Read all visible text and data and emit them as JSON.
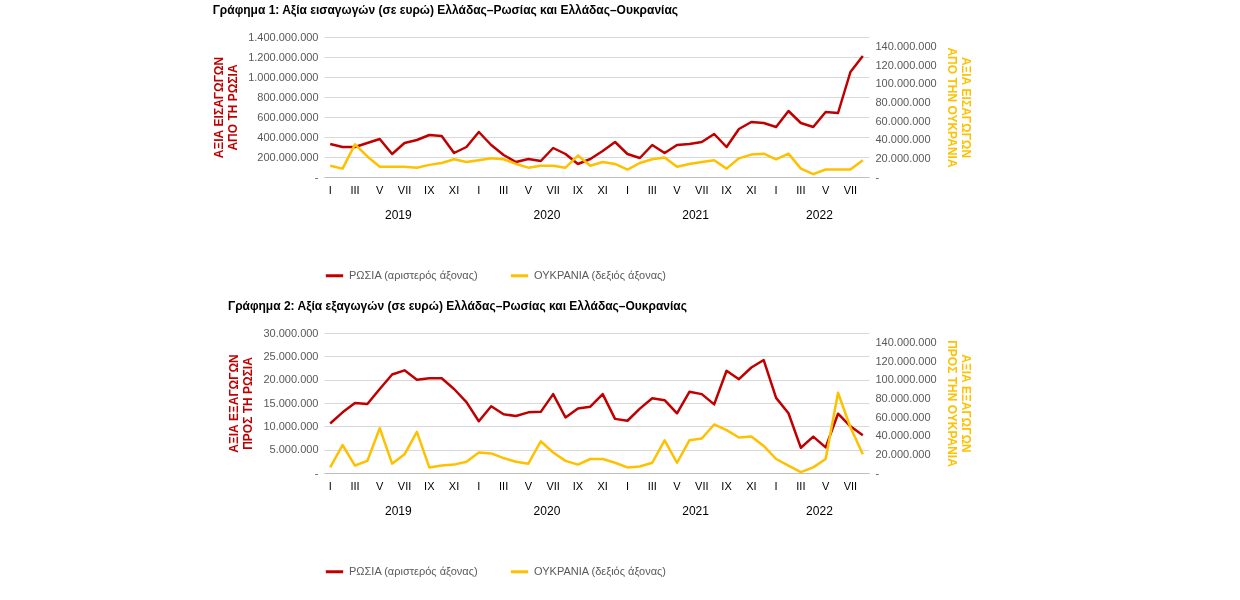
{
  "chart_data": [
    {
      "type": "line",
      "title": "Γράφημα 1: Αξία εισαγωγών (σε ευρώ) Ελλάδας–Ρωσίας και Ελλάδας–Ουκρανίας",
      "ylabel": "ΑΞΙΑ ΕΙΣΑΓΩΓΩΝ ΑΠΟ ΤΗ ΡΩΣΙΑ",
      "y2label": "ΑΞΙΑ ΕΙΣΑΓΩΓΩΝ ΑΠΟ ΤΗΝ ΟΥΚΡΑΝΙΑ",
      "categories": [
        "I",
        null,
        "III",
        null,
        "V",
        null,
        "VII",
        null,
        "IX",
        null,
        "XI",
        null,
        "I",
        null,
        "III",
        null,
        "V",
        null,
        "VII",
        null,
        "IX",
        null,
        "XI",
        null,
        "I",
        null,
        "III",
        null,
        "V",
        null,
        "VII",
        null,
        "IX",
        null,
        "XI",
        null,
        "I",
        null,
        "III",
        null,
        "V",
        null,
        "VII",
        null
      ],
      "annotations": [
        "2019",
        "2020",
        "2021",
        "2022"
      ],
      "ylim": [
        0,
        1400000000
      ],
      "yticks": [
        {
          "value": 0,
          "label": "-"
        },
        {
          "value": 200000000,
          "label": "200.000.000"
        },
        {
          "value": 400000000,
          "label": "400.000.000"
        },
        {
          "value": 600000000,
          "label": "600.000.000"
        },
        {
          "value": 800000000,
          "label": "800.000.000"
        },
        {
          "value": 1000000000,
          "label": "1.000.000.000"
        },
        {
          "value": 1200000000,
          "label": "1.200.000.000"
        },
        {
          "value": 1400000000,
          "label": "1.400.000.000"
        }
      ],
      "y2lim": [
        0,
        150000000
      ],
      "y2ticks": [
        {
          "value": 0,
          "label": "-"
        },
        {
          "value": 20000000,
          "label": "20.000.000"
        },
        {
          "value": 40000000,
          "label": "40.000.000"
        },
        {
          "value": 60000000,
          "label": "60.000.000"
        },
        {
          "value": 80000000,
          "label": "80.000.000"
        },
        {
          "value": 100000000,
          "label": "100.000.000"
        },
        {
          "value": 120000000,
          "label": "120.000.000"
        },
        {
          "value": 140000000,
          "label": "140.000.000"
        }
      ],
      "grid": "y",
      "legend": "bottom",
      "series": [
        {
          "name": "ΡΩΣΙΑ (αριστερός άξονας)",
          "color": "#c00000",
          "values": [
            330000000,
            300000000,
            300000000,
            340000000,
            380000000,
            230000000,
            340000000,
            370000000,
            420000000,
            410000000,
            240000000,
            300000000,
            450000000,
            320000000,
            220000000,
            150000000,
            180000000,
            160000000,
            290000000,
            230000000,
            130000000,
            180000000,
            260000000,
            350000000,
            230000000,
            190000000,
            320000000,
            240000000,
            320000000,
            330000000,
            350000000,
            430000000,
            300000000,
            480000000,
            550000000,
            540000000,
            500000000,
            660000000,
            540000000,
            500000000,
            650000000,
            640000000,
            1050000000,
            1210000000
          ]
        },
        {
          "name": "ΟΥΚΡΑΝΙΑ (δεξιός άξονας)",
          "color": "#ffc000",
          "axis": "y2",
          "values": [
            12000000,
            9000000,
            35000000,
            22000000,
            11000000,
            11000000,
            11000000,
            10000000,
            13000000,
            15000000,
            19000000,
            16000000,
            18000000,
            20000000,
            19000000,
            14000000,
            10000000,
            12000000,
            12000000,
            10000000,
            23000000,
            12000000,
            16000000,
            14000000,
            8000000,
            15000000,
            19000000,
            21000000,
            11000000,
            14000000,
            16000000,
            18000000,
            9000000,
            20000000,
            24000000,
            25000000,
            19000000,
            25000000,
            9000000,
            3000000,
            8000000,
            8000000,
            8000000,
            18000000
          ]
        }
      ]
    },
    {
      "type": "line",
      "title": "Γράφημα 2: Αξία εξαγωγών (σε ευρώ) Ελλάδας–Ρωσίας και Ελλάδας–Ουκρανίας",
      "ylabel": "ΑΞΙΑ ΕΞΑΓΩΓΩΝ ΠΡΟΣ ΤΗ ΡΩΣΙΑ",
      "y2label": "ΑΞΙΑ ΕΞΑΓΩΓΩΝ ΠΡΟΣ ΤΗΝ ΟΥΚΡΑΝΙΑ",
      "categories": [
        "I",
        null,
        "III",
        null,
        "V",
        null,
        "VII",
        null,
        "IX",
        null,
        "XI",
        null,
        "I",
        null,
        "III",
        null,
        "V",
        null,
        "VII",
        null,
        "IX",
        null,
        "XI",
        null,
        "I",
        null,
        "III",
        null,
        "V",
        null,
        "VII",
        null,
        "IX",
        null,
        "XI",
        null,
        "I",
        null,
        "III",
        null,
        "V",
        null,
        "VII",
        null
      ],
      "annotations": [
        "2019",
        "2020",
        "2021",
        "2022"
      ],
      "ylim": [
        0,
        30000000
      ],
      "yticks": [
        {
          "value": 0,
          "label": "-"
        },
        {
          "value": 5000000,
          "label": "5.000.000"
        },
        {
          "value": 10000000,
          "label": "10.000.000"
        },
        {
          "value": 15000000,
          "label": "15.000.000"
        },
        {
          "value": 20000000,
          "label": "20.000.000"
        },
        {
          "value": 25000000,
          "label": "25.000.000"
        },
        {
          "value": 30000000,
          "label": "30.000.000"
        }
      ],
      "y2lim": [
        0,
        150000000
      ],
      "y2ticks": [
        {
          "value": 0,
          "label": "-"
        },
        {
          "value": 20000000,
          "label": "20.000.000"
        },
        {
          "value": 40000000,
          "label": "40.000.000"
        },
        {
          "value": 60000000,
          "label": "60.000.000"
        },
        {
          "value": 80000000,
          "label": "80.000.000"
        },
        {
          "value": 100000000,
          "label": "100.000.000"
        },
        {
          "value": 120000000,
          "label": "120.000.000"
        },
        {
          "value": 140000000,
          "label": "140.000.000"
        }
      ],
      "grid": "y",
      "legend": "bottom",
      "series": [
        {
          "name": "ΡΩΣΙΑ (αριστερός άξονας)",
          "color": "#c00000",
          "values": [
            10600000,
            13000000,
            15000000,
            14800000,
            18000000,
            21100000,
            22000000,
            20000000,
            20300000,
            20300000,
            18000000,
            15200000,
            11100000,
            14300000,
            12600000,
            12200000,
            13000000,
            13100000,
            16900000,
            11900000,
            13800000,
            14200000,
            16900000,
            11600000,
            11200000,
            13800000,
            16000000,
            15600000,
            12800000,
            17400000,
            16900000,
            14700000,
            21900000,
            20100000,
            22600000,
            24200000,
            16100000,
            12800000,
            5400000,
            7800000,
            5500000,
            12700000,
            10000000,
            8100000
          ]
        },
        {
          "name": "ΟΥΚΡΑΝΙΑ (δεξιός άξονας)",
          "color": "#ffc000",
          "axis": "y2",
          "values": [
            6000000,
            30000000,
            8000000,
            13000000,
            48000000,
            10000000,
            20000000,
            44000000,
            6000000,
            8000000,
            9000000,
            12000000,
            22000000,
            21000000,
            16000000,
            12000000,
            10000000,
            34000000,
            22000000,
            13000000,
            9000000,
            15000000,
            15000000,
            11000000,
            6000000,
            7000000,
            11000000,
            35000000,
            11000000,
            35000000,
            37000000,
            52000000,
            46000000,
            38000000,
            39000000,
            29000000,
            15000000,
            8000000,
            1000000,
            6000000,
            15000000,
            86000000,
            49000000,
            20000000
          ]
        }
      ]
    }
  ]
}
